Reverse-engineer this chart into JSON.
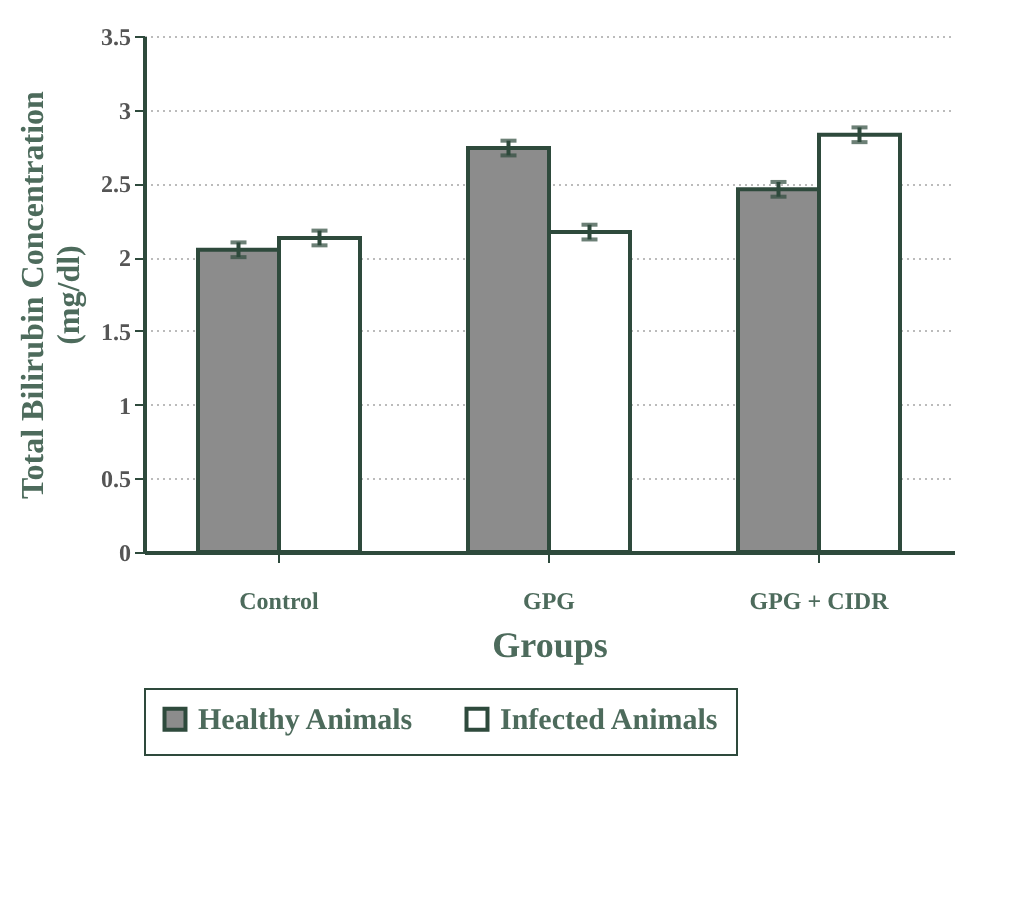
{
  "chart_data": {
    "type": "bar",
    "xlabel": "Groups",
    "ylabel": "Total Bilirubin Concentration (mg/dl)",
    "categories": [
      "Control",
      "GPG",
      "GPG + CIDR"
    ],
    "series": [
      {
        "name": "Healthy Animals",
        "color": "#8c8c8c",
        "values": [
          2.05,
          2.74,
          2.46
        ],
        "errors": [
          0.05,
          0.05,
          0.05
        ]
      },
      {
        "name": "Infected Animals",
        "color": "#ffffff",
        "values": [
          2.13,
          2.17,
          2.83
        ],
        "errors": [
          0.05,
          0.05,
          0.05
        ]
      }
    ],
    "ylim": [
      0,
      3.5
    ],
    "yticks": [
      0,
      0.5,
      1,
      1.5,
      2,
      2.5,
      3,
      3.5
    ],
    "grid": "y",
    "legend": "bottom"
  }
}
